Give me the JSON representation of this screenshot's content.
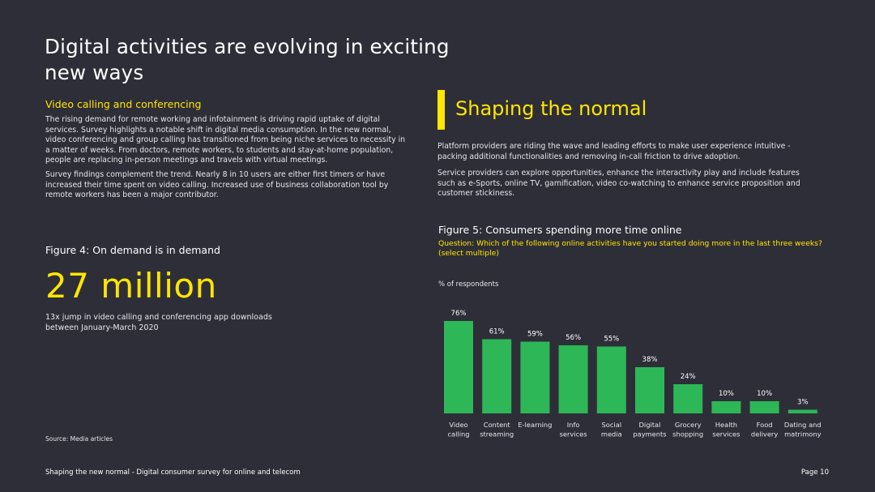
{
  "title": "Digital activities are evolving in exciting new ways",
  "left": {
    "subheading": "Video calling and conferencing",
    "paragraph1": "The rising demand for remote working and infotainment is driving rapid uptake of digital services. Survey highlights a notable shift in digital media consumption. In the new normal, video conferencing and  group calling has transitioned from being niche services to necessity in a matter of weeks. From doctors, remote workers, to students and stay-at-home population, people are replacing in-person meetings and travels with virtual meetings.",
    "paragraph2": "Survey findings complement the trend. Nearly 8 in 10 users are either first timers or have increased their time spent on video calling. Increased use of business collaboration tool by remote workers has been a major contributor.",
    "figure_title": "Figure 4: On demand is in demand",
    "big_stat": "27 million",
    "stat_desc": "13x jump in video calling and conferencing app downloads between January-March 2020",
    "source": "Source: Media articles"
  },
  "right": {
    "heading": "Shaping the normal",
    "paragraph1": "Platform providers are riding the wave and leading efforts to make user experience intuitive - packing additional functionalities and removing in-call friction to drive adoption.",
    "paragraph2": "Service providers can explore opportunities, enhance the interactivity play and include features such as e-Sports, online TV, gamification, video co-watching to enhance service proposition and customer stickiness.",
    "figure_title": "Figure 5: Consumers spending more time online",
    "question": "Question: Which of the following online activities have you started doing more in the last three weeks? (select multiple)"
  },
  "footer": {
    "left": "Shaping the new normal - Digital consumer survey for online and telecom",
    "right": "Page 10"
  },
  "colors": {
    "background": "#2e2e38",
    "accent": "#ffe600",
    "bar": "#2db757"
  },
  "chart_data": {
    "type": "bar",
    "ylabel": "% of respondents",
    "categories": [
      [
        "Video",
        "calling"
      ],
      [
        "Content",
        "streaming"
      ],
      [
        "E-learning"
      ],
      [
        "Info",
        "services"
      ],
      [
        "Social",
        "media"
      ],
      [
        "Digital",
        "payments"
      ],
      [
        "Grocery",
        "shopping"
      ],
      [
        "Health",
        "services"
      ],
      [
        "Food",
        "delivery"
      ],
      [
        "Dating and",
        "matrimony"
      ]
    ],
    "values": [
      76,
      61,
      59,
      56,
      55,
      38,
      24,
      10,
      10,
      3
    ],
    "value_labels": [
      "76%",
      "61%",
      "59%",
      "56%",
      "55%",
      "38%",
      "24%",
      "10%",
      "10%",
      "3%"
    ],
    "ylim": [
      0,
      80
    ],
    "grid": false
  }
}
